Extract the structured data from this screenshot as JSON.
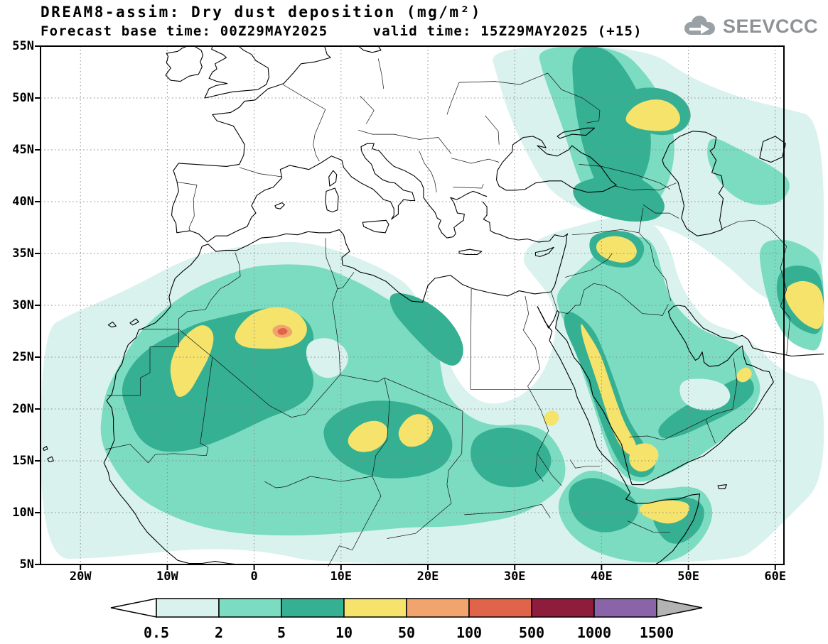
{
  "header": {
    "title": "DREAM8-assim: Dry dust deposition (mg/m²)",
    "subtitle": "Forecast base time: 00Z29MAY2025     valid time: 15Z29MAY2025 (+15)",
    "logo_text": "SEEVCCC"
  },
  "axes": {
    "lat_labels": [
      "55N",
      "50N",
      "45N",
      "40N",
      "35N",
      "30N",
      "25N",
      "20N",
      "15N",
      "10N",
      "5N"
    ],
    "lon_labels": [
      "20W",
      "10W",
      "0",
      "10E",
      "20E",
      "30E",
      "40E",
      "50E",
      "60E"
    ]
  },
  "chart_data": {
    "type": "heatmap",
    "title": "DREAM8-assim: Dry dust deposition (mg/m²)",
    "model": "DREAM8-assim",
    "variable": "Dry dust deposition",
    "units": "mg/m²",
    "forecast_base_time": "00Z29MAY2025",
    "valid_time": "15Z29MAY2025",
    "lead": "+15",
    "lat_ticks": [
      "55N",
      "50N",
      "45N",
      "40N",
      "35N",
      "30N",
      "25N",
      "20N",
      "15N",
      "10N",
      "5N"
    ],
    "lon_ticks": [
      "20W",
      "10W",
      "0",
      "10E",
      "20E",
      "30E",
      "40E",
      "50E",
      "60E"
    ],
    "grid": "dotted",
    "legend_position": "bottom",
    "colorbar": {
      "levels": [
        0.5,
        2,
        5,
        10,
        50,
        100,
        500,
        1000,
        1500
      ],
      "level_labels": [
        "0.5",
        "2",
        "5",
        "10",
        "50",
        "100",
        "500",
        "1000",
        "1500"
      ],
      "colors": [
        "#ffffff",
        "#d9f2ee",
        "#7bdcc1",
        "#35b093",
        "#f5e36b",
        "#f2a46e",
        "#df644a",
        "#8e1d3d",
        "#8a64a8",
        "#b3b3b3"
      ]
    },
    "shaded_bands_mg_m2": [
      {
        "band": "0.5–2",
        "color": "#d9f2ee",
        "extent": "Atlantic off W Africa, Sahel fringes, Levant and E Mediterranean, Ukraine–Caspian band, Iran, NW Indian Ocean"
      },
      {
        "band": "2–5",
        "color": "#7bdcc1",
        "extent": "broad Sahara/Sahel belt, most of Arabian Peninsula, Horn of Africa, Caucasus–Caspian band"
      },
      {
        "band": "5–10",
        "color": "#35b093",
        "extent": "Mauritania–Mali–S Algeria core, Chad–Sudan core, NE Libya band, Hejaz strip, Yemen/Oman, Caucasus, NE-Caspian, N Somalia"
      },
      {
        "band": "10–50",
        "color": "#f5e36b",
        "extent": "Morocco/W Sahara belt, NW Algeria, Chad–Sudan patches, Saudi Red-Sea coast, SW Arabia, N Syria–Iraq, NE of Caspian, N Somalia coast, SE Iran"
      },
      {
        "band": "50–100",
        "color": "#f2a46e",
        "extent": "small ring in central Algeria near 27N 3E"
      },
      {
        "band": "100–500",
        "color": "#df644a",
        "extent": "small maximum in central Algeria near 27N 3E"
      }
    ],
    "hotspots": [
      {
        "location": "central Algeria ~27N 3E",
        "band": "100–500"
      },
      {
        "location": "Morocco / Western Sahara belt",
        "band": "10–50"
      },
      {
        "location": "NW Algeria",
        "band": "10–50"
      },
      {
        "location": "Chad–Sudan belt ~17N, 11–20E",
        "band": "10–50"
      },
      {
        "location": "Hejaz coast, Saudi Arabia",
        "band": "10–50"
      },
      {
        "location": "SW Arabia / Yemen",
        "band": "10–50"
      },
      {
        "location": "N Syria – Iraq (Jazira)",
        "band": "10–50"
      },
      {
        "location": "NE of Caspian Sea",
        "band": "10–50"
      },
      {
        "location": "N Somalia coast",
        "band": "10–50"
      },
      {
        "location": "SE Iran / Makran (right edge)",
        "band": "10–50"
      }
    ]
  }
}
